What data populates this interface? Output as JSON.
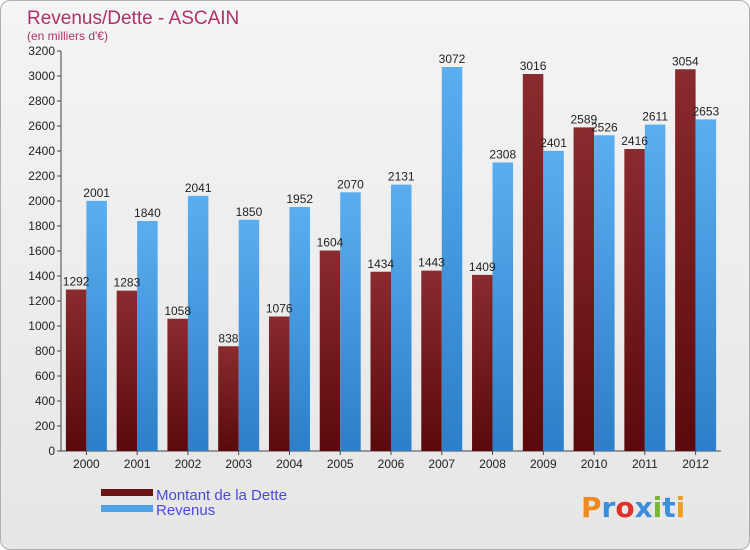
{
  "chart_data": {
    "type": "bar",
    "title": "Revenus/Dette - ASCAIN",
    "subtitle": "(en milliers d'€)",
    "categories": [
      "2000",
      "2001",
      "2002",
      "2003",
      "2004",
      "2005",
      "2006",
      "2007",
      "2008",
      "2009",
      "2010",
      "2011",
      "2012"
    ],
    "series": [
      {
        "name": "Montant de la Dette",
        "color": "#7a1f22",
        "values": [
          1292,
          1283,
          1058,
          838,
          1076,
          1604,
          1434,
          1443,
          1409,
          3016,
          2589,
          2416,
          3054
        ],
        "labels": [
          "1292",
          "1283",
          "1058",
          "838",
          "1076",
          "1604",
          "1434",
          "1443",
          "1409",
          "3016",
          "2589",
          "2416",
          "3054"
        ]
      },
      {
        "name": "Revenus",
        "color": "#4ea3e6",
        "values": [
          2001,
          1840,
          2041,
          1850,
          1952,
          2070,
          2131,
          3072,
          2308,
          2401,
          2526,
          2611,
          2653
        ],
        "labels": [
          "2001",
          "1840",
          "2041",
          "1850",
          "1952",
          "2070",
          "2131",
          "3072",
          "2308",
          "2401",
          "2526",
          "2611",
          "2653"
        ]
      }
    ],
    "yticks": [
      "0",
      "200",
      "400",
      "600",
      "800",
      "1000",
      "1200",
      "1400",
      "1600",
      "1800",
      "2000",
      "2200",
      "2400",
      "2600",
      "2800",
      "3000",
      "3200"
    ],
    "ylim": [
      0,
      3200
    ],
    "grid": false,
    "legend": "bottom-left"
  },
  "branding": {
    "logo": "Proxiti"
  }
}
